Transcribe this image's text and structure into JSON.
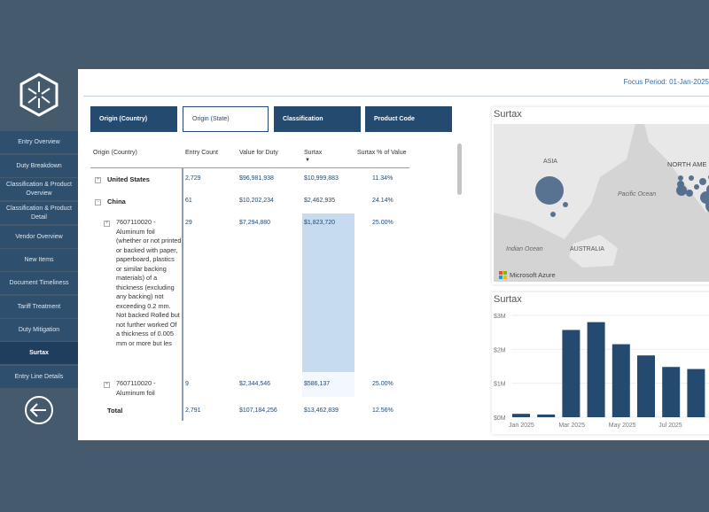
{
  "sidebar": {
    "items": [
      {
        "label": "Entry Overview"
      },
      {
        "label": "Duty Breakdown"
      },
      {
        "label": "Classification & Product Overview"
      },
      {
        "label": "Classification & Product Detail"
      },
      {
        "label": "Vendor Overview"
      },
      {
        "label": "New Items"
      },
      {
        "label": "Document Timeliness"
      },
      {
        "label": "Tariff Treatment"
      },
      {
        "label": "Duty Mitigation"
      },
      {
        "label": "Surtax",
        "active": true
      },
      {
        "label": "Entry Line Details"
      }
    ]
  },
  "header": {
    "focus_period": "Focus Period: 01-Jan-2025"
  },
  "tabs": [
    {
      "label": "Origin (Country)"
    },
    {
      "label": "Origin (State)",
      "selected": true
    },
    {
      "label": "Classification"
    },
    {
      "label": "Product Code"
    }
  ],
  "table": {
    "columns": [
      "Origin (Country)",
      "Entry Count",
      "Value for Duty",
      "Surtax",
      "Surtax % of Value"
    ],
    "rows": [
      {
        "label": "United States",
        "count": "2,729",
        "value": "$96,981,938",
        "surtax": "$10,999,883",
        "pct": "11.34%"
      },
      {
        "label": "China",
        "count": "61",
        "value": "$10,202,234",
        "surtax": "$2,462,935",
        "pct": "24.14%"
      },
      {
        "label": "7607110020 - Aluminum foil (whether or not printed or backed with paper, paperboard, plastics or similar backing materials) of a thickness (excluding any backing) not exceeding 0.2 mm. Not backed Rolled but not further worked Of a thickness of 0.005 mm or more but les",
        "count": "29",
        "value": "$7,294,880",
        "surtax": "$1,823,720",
        "pct": "25.00%"
      },
      {
        "label": "7607110020 - Aluminum foil",
        "count": "9",
        "value": "$2,344,546",
        "surtax": "$586,137",
        "pct": "25.00%"
      }
    ],
    "total": {
      "label": "Total",
      "count": "2,791",
      "value": "$107,184,256",
      "surtax": "$13,462,839",
      "pct": "12.56%"
    }
  },
  "map": {
    "title": "Surtax",
    "labels": [
      "ASIA",
      "NORTH AME",
      "Pacific Ocean",
      "Indian Ocean",
      "AUSTRALIA"
    ],
    "attribution": "Microsoft Azure"
  },
  "chart_data": {
    "type": "bar",
    "title": "Surtax",
    "categories": [
      "Jan 2025",
      "Feb 2025",
      "Mar 2025",
      "Apr 2025",
      "May 2025",
      "Jun 2025",
      "Jul 2025",
      "Aug 2025"
    ],
    "values": [
      100000,
      80000,
      2570000,
      2800000,
      2150000,
      1820000,
      1480000,
      1420000
    ],
    "x_tick_labels": [
      "Jan 2025",
      "Mar 2025",
      "May 2025",
      "Jul 2025"
    ],
    "y_tick_labels": [
      "$0M",
      "$1M",
      "$2M",
      "$3M"
    ],
    "ylim": [
      0,
      3000000
    ],
    "color": "#254a6f"
  }
}
